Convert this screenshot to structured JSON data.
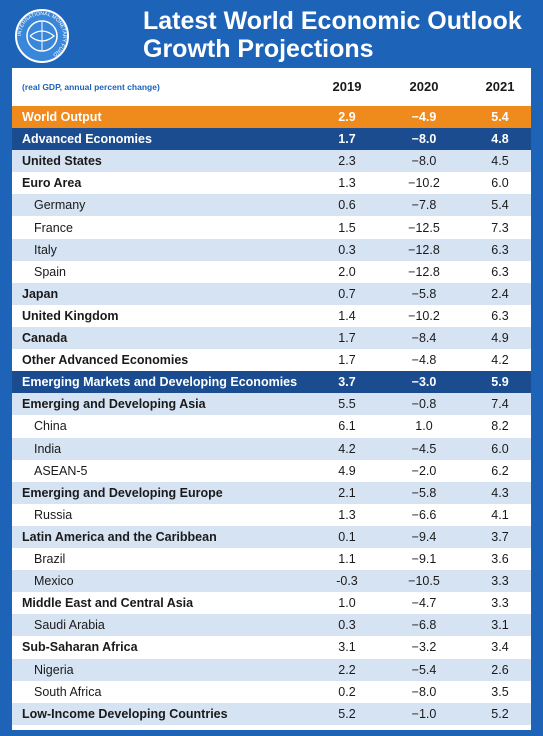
{
  "header": {
    "title_line1": "Latest World Economic Outlook",
    "title_line2": "Growth Projections",
    "logo_text": "INTERNATIONAL MONETARY FUND"
  },
  "table": {
    "columns": [
      "(real GDP, annual percent change)",
      "2019",
      "2020",
      "2021"
    ],
    "rows": [
      [
        "World Output",
        "2.9",
        "−4.9",
        "5.4"
      ],
      [
        "Advanced Economies",
        "1.7",
        "−8.0",
        "4.8"
      ],
      [
        "United States",
        "2.3",
        "−8.0",
        "4.5"
      ],
      [
        "Euro Area",
        "1.3",
        "−10.2",
        "6.0"
      ],
      [
        "Germany",
        "0.6",
        "−7.8",
        "5.4"
      ],
      [
        "France",
        "1.5",
        "−12.5",
        "7.3"
      ],
      [
        "Italy",
        "0.3",
        "−12.8",
        "6.3"
      ],
      [
        "Spain",
        "2.0",
        "−12.8",
        "6.3"
      ],
      [
        "Japan",
        "0.7",
        "−5.8",
        "2.4"
      ],
      [
        "United Kingdom",
        "1.4",
        "−10.2",
        "6.3"
      ],
      [
        "Canada",
        "1.7",
        "−8.4",
        "4.9"
      ],
      [
        "Other Advanced Economies",
        "1.7",
        "−4.8",
        "4.2"
      ],
      [
        "Emerging Markets and Developing Economies",
        "3.7",
        "−3.0",
        "5.9"
      ],
      [
        "Emerging and Developing Asia",
        "5.5",
        "−0.8",
        "7.4"
      ],
      [
        "China",
        "6.1",
        "1.0",
        "8.2"
      ],
      [
        "India",
        "4.2",
        "−4.5",
        "6.0"
      ],
      [
        "ASEAN-5",
        "4.9",
        "−2.0",
        "6.2"
      ],
      [
        "Emerging and Developing Europe",
        "2.1",
        "−5.8",
        "4.3"
      ],
      [
        "Russia",
        "1.3",
        "−6.6",
        "4.1"
      ],
      [
        "Latin America and the Caribbean",
        "0.1",
        "−9.4",
        "3.7"
      ],
      [
        "Brazil",
        "1.1",
        "−9.1",
        "3.6"
      ],
      [
        "Mexico",
        "-0.3",
        "−10.5",
        "3.3"
      ],
      [
        "Middle East and Central Asia",
        "1.0",
        "−4.7",
        "3.3"
      ],
      [
        "Saudi Arabia",
        "0.3",
        "−6.8",
        "3.1"
      ],
      [
        "Sub-Saharan Africa",
        "3.1",
        "−3.2",
        "3.4"
      ],
      [
        "Nigeria",
        "2.2",
        "−5.4",
        "2.6"
      ],
      [
        "South Africa",
        "0.2",
        "−8.0",
        "3.5"
      ],
      [
        "Low-Income Developing Countries",
        "5.2",
        "−1.0",
        "5.2"
      ]
    ]
  }
}
